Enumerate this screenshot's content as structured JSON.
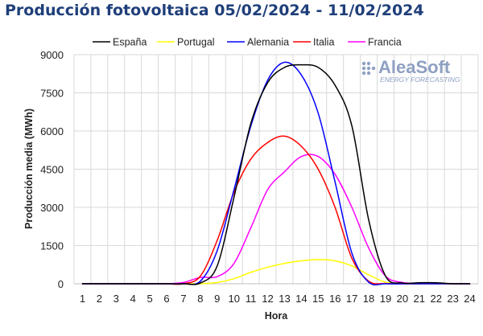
{
  "chart_data": {
    "type": "line",
    "title": "Producción fotovoltaica 05/02/2024 - 11/02/2024",
    "xlabel": "Hora",
    "ylabel": "Producción media (MWh)",
    "xlim": [
      1,
      24
    ],
    "ylim": [
      0,
      9000
    ],
    "yticks": [
      0,
      1500,
      3000,
      4500,
      6000,
      7500,
      9000
    ],
    "x": [
      1,
      2,
      3,
      4,
      5,
      6,
      7,
      8,
      9,
      10,
      11,
      12,
      13,
      14,
      15,
      16,
      17,
      18,
      19,
      20,
      21,
      22,
      23,
      24
    ],
    "grid": "both",
    "legend": "top",
    "series": [
      {
        "name": "España",
        "color": "#000000",
        "values": [
          0,
          0,
          0,
          0,
          0,
          0,
          0,
          30,
          700,
          3400,
          6300,
          7900,
          8500,
          8600,
          8500,
          7800,
          6200,
          2500,
          300,
          30,
          40,
          40,
          0,
          0
        ]
      },
      {
        "name": "Portugal",
        "color": "#ffff00",
        "values": [
          0,
          0,
          0,
          0,
          0,
          0,
          0,
          0,
          50,
          200,
          450,
          650,
          800,
          900,
          950,
          900,
          700,
          350,
          60,
          10,
          0,
          0,
          0,
          0
        ]
      },
      {
        "name": "Alemania",
        "color": "#0000ff",
        "values": [
          0,
          0,
          0,
          0,
          0,
          0,
          0,
          100,
          1300,
          3700,
          6200,
          8000,
          8700,
          8200,
          6700,
          4000,
          1200,
          60,
          0,
          0,
          0,
          0,
          0,
          0
        ]
      },
      {
        "name": "Italia",
        "color": "#ff0000",
        "values": [
          0,
          0,
          0,
          0,
          0,
          0,
          0,
          300,
          1700,
          3600,
          4900,
          5550,
          5800,
          5400,
          4500,
          3000,
          1000,
          100,
          10,
          0,
          0,
          0,
          0,
          0
        ]
      },
      {
        "name": "Francia",
        "color": "#ff00ff",
        "values": [
          0,
          0,
          0,
          0,
          0,
          0,
          50,
          250,
          280,
          800,
          2200,
          3700,
          4400,
          5000,
          5000,
          4300,
          3000,
          1400,
          300,
          50,
          20,
          10,
          0,
          0
        ]
      }
    ]
  },
  "logo": {
    "name": "AleaSoft",
    "tagline": "ENERGY FORECASTING",
    "color": "#8ea0c2"
  }
}
